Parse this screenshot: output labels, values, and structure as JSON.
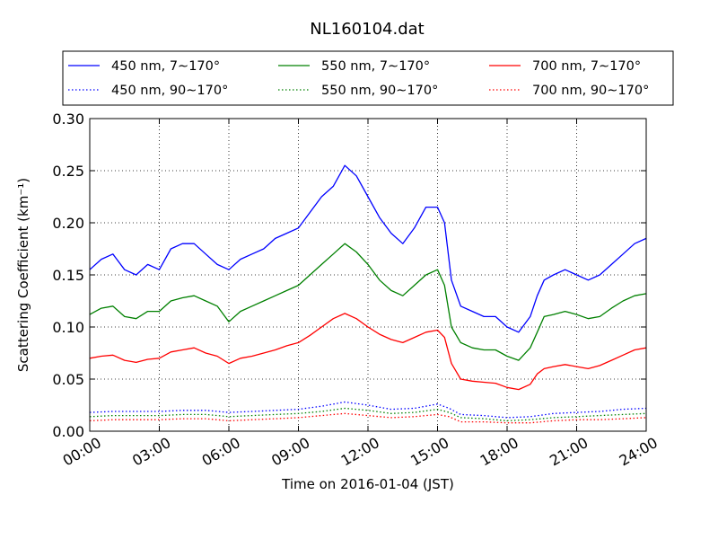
{
  "chart_data": {
    "type": "line",
    "title": "NL160104.dat",
    "xlabel": "Time on 2016-01-04 (JST)",
    "ylabel": "Scattering Coefficient (km⁻¹)",
    "xlim": [
      0,
      24
    ],
    "ylim": [
      0.0,
      0.3
    ],
    "x_ticks": [
      "00:00",
      "03:00",
      "06:00",
      "09:00",
      "12:00",
      "15:00",
      "18:00",
      "21:00",
      "24:00"
    ],
    "y_ticks": [
      "0.00",
      "0.05",
      "0.10",
      "0.15",
      "0.20",
      "0.25",
      "0.30"
    ],
    "grid": true,
    "legend_position": "top (above plot), 3 columns",
    "x_unit": "hours",
    "series": [
      {
        "name": "450 nm, 7∼170°",
        "color": "#0000ff",
        "style": "solid",
        "x": [
          0,
          0.5,
          1,
          1.5,
          2,
          2.5,
          3,
          3.5,
          4,
          4.5,
          5,
          5.5,
          6,
          6.5,
          7,
          7.5,
          8,
          8.5,
          9,
          9.5,
          10,
          10.5,
          11,
          11.5,
          12,
          12.5,
          13,
          13.5,
          14,
          14.5,
          15,
          15.3,
          15.6,
          16,
          16.5,
          17,
          17.5,
          18,
          18.5,
          19,
          19.3,
          19.6,
          20,
          20.5,
          21,
          21.5,
          22,
          22.5,
          23,
          23.5,
          24
        ],
        "y": [
          0.155,
          0.165,
          0.17,
          0.155,
          0.15,
          0.16,
          0.155,
          0.175,
          0.18,
          0.18,
          0.17,
          0.16,
          0.155,
          0.165,
          0.17,
          0.175,
          0.185,
          0.19,
          0.195,
          0.21,
          0.225,
          0.235,
          0.255,
          0.245,
          0.225,
          0.205,
          0.19,
          0.18,
          0.195,
          0.215,
          0.215,
          0.2,
          0.145,
          0.12,
          0.115,
          0.11,
          0.11,
          0.1,
          0.095,
          0.11,
          0.13,
          0.145,
          0.15,
          0.155,
          0.15,
          0.145,
          0.15,
          0.16,
          0.17,
          0.18,
          0.185
        ]
      },
      {
        "name": "450 nm, 90∼170°",
        "color": "#0000ff",
        "style": "dotted",
        "x": [
          0,
          1,
          2,
          3,
          4,
          5,
          6,
          7,
          8,
          9,
          10,
          11,
          12,
          13,
          14,
          15,
          15.5,
          16,
          17,
          18,
          19,
          20,
          21,
          22,
          23,
          24
        ],
        "y": [
          0.018,
          0.019,
          0.019,
          0.019,
          0.02,
          0.02,
          0.018,
          0.019,
          0.02,
          0.021,
          0.024,
          0.028,
          0.025,
          0.021,
          0.022,
          0.026,
          0.022,
          0.016,
          0.015,
          0.013,
          0.014,
          0.017,
          0.018,
          0.019,
          0.021,
          0.022
        ]
      },
      {
        "name": "550 nm, 7∼170°",
        "color": "#008000",
        "style": "solid",
        "x": [
          0,
          0.5,
          1,
          1.5,
          2,
          2.5,
          3,
          3.5,
          4,
          4.5,
          5,
          5.5,
          6,
          6.5,
          7,
          7.5,
          8,
          8.5,
          9,
          9.5,
          10,
          10.5,
          11,
          11.5,
          12,
          12.5,
          13,
          13.5,
          14,
          14.5,
          15,
          15.3,
          15.6,
          16,
          16.5,
          17,
          17.5,
          18,
          18.5,
          19,
          19.3,
          19.6,
          20,
          20.5,
          21,
          21.5,
          22,
          22.5,
          23,
          23.5,
          24
        ],
        "y": [
          0.112,
          0.118,
          0.12,
          0.11,
          0.108,
          0.115,
          0.115,
          0.125,
          0.128,
          0.13,
          0.125,
          0.12,
          0.105,
          0.115,
          0.12,
          0.125,
          0.13,
          0.135,
          0.14,
          0.15,
          0.16,
          0.17,
          0.18,
          0.172,
          0.16,
          0.145,
          0.135,
          0.13,
          0.14,
          0.15,
          0.155,
          0.14,
          0.1,
          0.085,
          0.08,
          0.078,
          0.078,
          0.072,
          0.068,
          0.08,
          0.095,
          0.11,
          0.112,
          0.115,
          0.112,
          0.108,
          0.11,
          0.118,
          0.125,
          0.13,
          0.132
        ]
      },
      {
        "name": "550 nm, 90∼170°",
        "color": "#008000",
        "style": "dotted",
        "x": [
          0,
          1,
          2,
          3,
          4,
          5,
          6,
          7,
          8,
          9,
          10,
          11,
          12,
          13,
          14,
          15,
          15.5,
          16,
          17,
          18,
          19,
          20,
          21,
          22,
          23,
          24
        ],
        "y": [
          0.014,
          0.015,
          0.015,
          0.015,
          0.016,
          0.016,
          0.014,
          0.015,
          0.016,
          0.017,
          0.019,
          0.022,
          0.02,
          0.017,
          0.018,
          0.021,
          0.018,
          0.013,
          0.012,
          0.01,
          0.011,
          0.013,
          0.014,
          0.015,
          0.016,
          0.017
        ]
      },
      {
        "name": "700 nm, 7∼170°",
        "color": "#ff0000",
        "style": "solid",
        "x": [
          0,
          0.5,
          1,
          1.5,
          2,
          2.5,
          3,
          3.5,
          4,
          4.5,
          5,
          5.5,
          6,
          6.5,
          7,
          7.5,
          8,
          8.5,
          9,
          9.5,
          10,
          10.5,
          11,
          11.5,
          12,
          12.5,
          13,
          13.5,
          14,
          14.5,
          15,
          15.3,
          15.6,
          16,
          16.5,
          17,
          17.5,
          18,
          18.5,
          19,
          19.3,
          19.6,
          20,
          20.5,
          21,
          21.5,
          22,
          22.5,
          23,
          23.5,
          24
        ],
        "y": [
          0.07,
          0.072,
          0.073,
          0.068,
          0.066,
          0.069,
          0.07,
          0.076,
          0.078,
          0.08,
          0.075,
          0.072,
          0.065,
          0.07,
          0.072,
          0.075,
          0.078,
          0.082,
          0.085,
          0.092,
          0.1,
          0.108,
          0.113,
          0.108,
          0.1,
          0.093,
          0.088,
          0.085,
          0.09,
          0.095,
          0.097,
          0.09,
          0.065,
          0.05,
          0.048,
          0.047,
          0.046,
          0.042,
          0.04,
          0.045,
          0.055,
          0.06,
          0.062,
          0.064,
          0.062,
          0.06,
          0.063,
          0.068,
          0.073,
          0.078,
          0.08
        ]
      },
      {
        "name": "700 nm, 90∼170°",
        "color": "#ff0000",
        "style": "dotted",
        "x": [
          0,
          1,
          2,
          3,
          4,
          5,
          6,
          7,
          8,
          9,
          10,
          11,
          12,
          13,
          14,
          15,
          15.5,
          16,
          17,
          18,
          19,
          20,
          21,
          22,
          23,
          24
        ],
        "y": [
          0.01,
          0.011,
          0.011,
          0.011,
          0.012,
          0.012,
          0.01,
          0.011,
          0.012,
          0.013,
          0.015,
          0.017,
          0.015,
          0.013,
          0.014,
          0.016,
          0.014,
          0.009,
          0.009,
          0.008,
          0.008,
          0.01,
          0.011,
          0.011,
          0.012,
          0.013
        ]
      }
    ]
  }
}
